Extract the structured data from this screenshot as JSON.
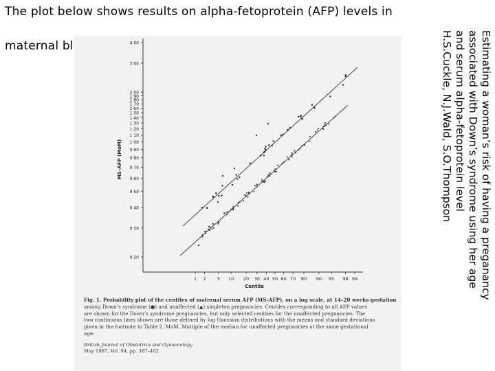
{
  "intro": {
    "line1": "The plot below shows results on alpha-fetoprotein (AFP) levels in",
    "line2": "maternal bl"
  },
  "reference": {
    "lines": [
      "Estimating a woman’s risk of having a preganancy",
      "associated with Down’s syndrome using her age",
      "and serum alpha-fetoprotein level",
      "H.S.Cuckle, N.J.Wald, S.O.Thompson"
    ]
  },
  "figure": {
    "ylabel": "MS–AFP (MoM)",
    "xlabel": "Centile",
    "y_ticks": [
      "4·00",
      "3·00",
      "2·00",
      "1·90",
      "1·80",
      "1·70",
      "1·60",
      "1·50",
      "1·40",
      "1·30",
      "1·20",
      "1·10",
      "1·00",
      "0·90",
      "0·80",
      "0·70",
      "0·60",
      "0·50",
      "0·40",
      "0·30",
      "0·20"
    ],
    "x_ticks": [
      "1",
      "2",
      "5",
      "10",
      "20",
      "30",
      "40",
      "50",
      "60",
      "70",
      "80",
      "90",
      "95",
      "98",
      "99"
    ],
    "caption": [
      "Fig. 1. Probability plot of the centiles of maternal serum AFP (MS-AFP), on a log scale, at 14–20 weeks gestation",
      "among Down’s syndrome (●) and unaffected (▲) singleton pregnancies. Centiles corresponding to all AFP values",
      "are shown for the Down’s syndrome pregnancies, but only selected centiles for the unaffected pregnancies. The",
      "two continuous lines shown are those defined by log Gaussian distributions with the means and standard deviations",
      "given in the footnote to Table 2. MoM, Multiple of the median for unaffected pregnancies at the same gestational",
      "age."
    ],
    "journal": "British Journal of Obstetrics and Gynaecology",
    "volume": "May 1987, Vol. 94, pp. 387–402"
  }
}
